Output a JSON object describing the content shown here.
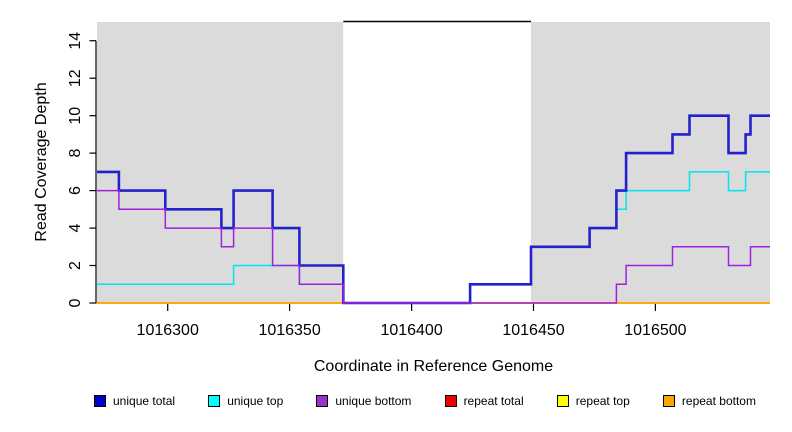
{
  "chart_data": {
    "type": "line",
    "step": true,
    "title": "",
    "xlabel": "Coordinate in Reference Genome",
    "ylabel": "Read Coverage Depth",
    "xlim": [
      1016271,
      1016547
    ],
    "ylim": [
      0,
      15
    ],
    "xticks": [
      1016300,
      1016350,
      1016400,
      1016450,
      1016500
    ],
    "yticks": [
      0,
      2,
      4,
      6,
      8,
      10,
      12,
      14
    ],
    "grid": false,
    "legend_position": "bottom",
    "background_regions": [
      {
        "name": "flank-left",
        "x0": 1016271,
        "x1": 1016372,
        "color": "#DBDBDB"
      },
      {
        "name": "repeat-gap",
        "x0": 1016372,
        "x1": 1016449,
        "color": "#FFFFFF"
      },
      {
        "name": "flank-right",
        "x0": 1016449,
        "x1": 1016547,
        "color": "#DBDBDB"
      }
    ],
    "cap_line": {
      "x0": 1016372,
      "x1": 1016449,
      "y": 15,
      "color": "#000000"
    },
    "series": [
      {
        "name": "repeat total",
        "color": "#DD0000",
        "line_width": 1.5,
        "steps": [
          [
            1016271,
            0
          ],
          [
            1016547,
            0
          ]
        ]
      },
      {
        "name": "repeat top",
        "color": "#FFFF00",
        "line_width": 1.5,
        "steps": [
          [
            1016271,
            0
          ],
          [
            1016547,
            0
          ]
        ]
      },
      {
        "name": "repeat bottom",
        "color": "#FFA500",
        "line_width": 1.6,
        "steps": [
          [
            1016271,
            0
          ],
          [
            1016547,
            0
          ]
        ]
      },
      {
        "name": "unique top",
        "color": "#00E5EE",
        "line_width": 1.5,
        "steps": [
          [
            1016271,
            1
          ],
          [
            1016327,
            2
          ],
          [
            1016354,
            1
          ],
          [
            1016372,
            0
          ],
          [
            1016424,
            1
          ],
          [
            1016449,
            3
          ],
          [
            1016473,
            4
          ],
          [
            1016484,
            5
          ],
          [
            1016488,
            6
          ],
          [
            1016514,
            7
          ],
          [
            1016530,
            6
          ],
          [
            1016537,
            7
          ],
          [
            1016547,
            7
          ]
        ]
      },
      {
        "name": "unique total",
        "color": "#2222CC",
        "line_width": 2.6,
        "steps": [
          [
            1016271,
            7
          ],
          [
            1016280,
            6
          ],
          [
            1016299,
            5
          ],
          [
            1016322,
            4
          ],
          [
            1016327,
            6
          ],
          [
            1016343,
            4
          ],
          [
            1016354,
            2
          ],
          [
            1016372,
            0
          ],
          [
            1016424,
            1
          ],
          [
            1016449,
            3
          ],
          [
            1016473,
            4
          ],
          [
            1016484,
            6
          ],
          [
            1016488,
            8
          ],
          [
            1016507,
            9
          ],
          [
            1016514,
            10
          ],
          [
            1016530,
            8
          ],
          [
            1016537,
            9
          ],
          [
            1016539,
            10
          ],
          [
            1016547,
            10
          ]
        ]
      },
      {
        "name": "unique bottom",
        "color": "#A020E0",
        "line_width": 1.5,
        "steps": [
          [
            1016271,
            6
          ],
          [
            1016280,
            5
          ],
          [
            1016299,
            4
          ],
          [
            1016322,
            3
          ],
          [
            1016327,
            4
          ],
          [
            1016343,
            2
          ],
          [
            1016354,
            1
          ],
          [
            1016372,
            0
          ],
          [
            1016484,
            1
          ],
          [
            1016488,
            2
          ],
          [
            1016507,
            3
          ],
          [
            1016530,
            2
          ],
          [
            1016539,
            3
          ],
          [
            1016547,
            3
          ]
        ]
      }
    ],
    "legend": [
      {
        "label": "unique total",
        "color": "#0000CC"
      },
      {
        "label": "unique top",
        "color": "#00FFFF"
      },
      {
        "label": "unique bottom",
        "color": "#9933CC"
      },
      {
        "label": "repeat total",
        "color": "#EE0000"
      },
      {
        "label": "repeat top",
        "color": "#FFFF00"
      },
      {
        "label": "repeat bottom",
        "color": "#FFA500"
      }
    ]
  }
}
